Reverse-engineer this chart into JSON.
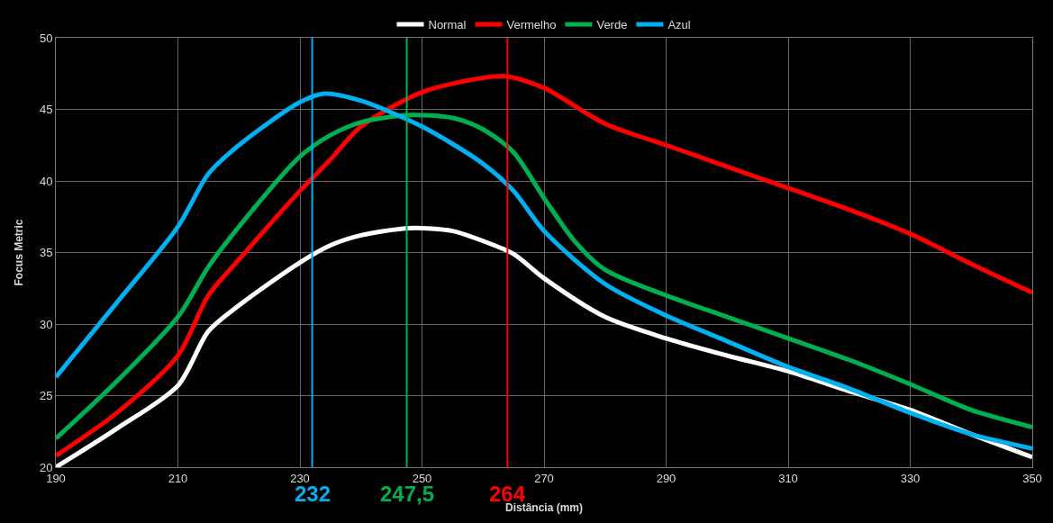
{
  "chart_data": {
    "type": "line",
    "xlabel": "Distância (mm)",
    "ylabel": "Focus Metric",
    "xlim": [
      190,
      350
    ],
    "xticks": [
      190,
      210,
      230,
      250,
      270,
      290,
      310,
      330,
      350
    ],
    "ylim": [
      20,
      50
    ],
    "yticks": [
      20,
      25,
      30,
      35,
      40,
      45,
      50
    ],
    "grid": true,
    "legend": "top",
    "marker": "none",
    "line_style": "solid",
    "series": [
      {
        "name": "Normal",
        "color": "#ffffff",
        "x": [
          190,
          200,
          210,
          215,
          220,
          230,
          235,
          240,
          248,
          255,
          260,
          265,
          270,
          280,
          290,
          300,
          310,
          320,
          330,
          340,
          350
        ],
        "values": [
          20.0,
          22.7,
          25.7,
          29.5,
          31.3,
          34.3,
          35.5,
          36.2,
          36.7,
          36.5,
          35.8,
          34.9,
          33.2,
          30.5,
          29.0,
          27.8,
          26.7,
          25.3,
          24.0,
          22.3,
          20.7
        ]
      },
      {
        "name": "Vermelho",
        "color": "#ff0000",
        "x": [
          190,
          200,
          210,
          215,
          220,
          230,
          235,
          240,
          250,
          260,
          264,
          270,
          280,
          290,
          300,
          310,
          320,
          330,
          340,
          350
        ],
        "values": [
          20.8,
          23.8,
          27.8,
          32.0,
          34.5,
          39.3,
          41.5,
          43.8,
          46.2,
          47.2,
          47.3,
          46.5,
          44.0,
          42.5,
          41.0,
          39.5,
          38.0,
          36.3,
          34.2,
          32.2
        ]
      },
      {
        "name": "Verde",
        "color": "#00b050",
        "x": [
          190,
          200,
          210,
          215,
          220,
          230,
          235,
          240,
          248,
          255,
          260,
          265,
          270,
          275,
          280,
          290,
          300,
          310,
          320,
          330,
          340,
          350
        ],
        "values": [
          22.0,
          26.0,
          30.5,
          34.0,
          36.8,
          41.7,
          43.2,
          44.1,
          44.6,
          44.4,
          43.6,
          42.0,
          38.8,
          35.8,
          33.8,
          32.0,
          30.5,
          29.0,
          27.5,
          25.8,
          24.0,
          22.8
        ]
      },
      {
        "name": "Azul",
        "color": "#00b0f0",
        "x": [
          190,
          200,
          210,
          215,
          220,
          230,
          234,
          240,
          250,
          260,
          265,
          270,
          280,
          290,
          300,
          310,
          320,
          330,
          340,
          350
        ],
        "values": [
          26.3,
          31.5,
          36.8,
          40.5,
          42.5,
          45.5,
          46.1,
          45.6,
          43.8,
          41.2,
          39.3,
          36.5,
          32.8,
          30.6,
          28.8,
          27.0,
          25.5,
          23.8,
          22.3,
          21.3
        ]
      }
    ],
    "ref_lines": [
      {
        "axis": "x",
        "value": 232,
        "label": "232",
        "color": "#00b0f0"
      },
      {
        "axis": "x",
        "value": 247.5,
        "label": "247,5",
        "color": "#00b050"
      },
      {
        "axis": "x",
        "value": 264,
        "label": "264",
        "color": "#ff0000"
      }
    ]
  }
}
